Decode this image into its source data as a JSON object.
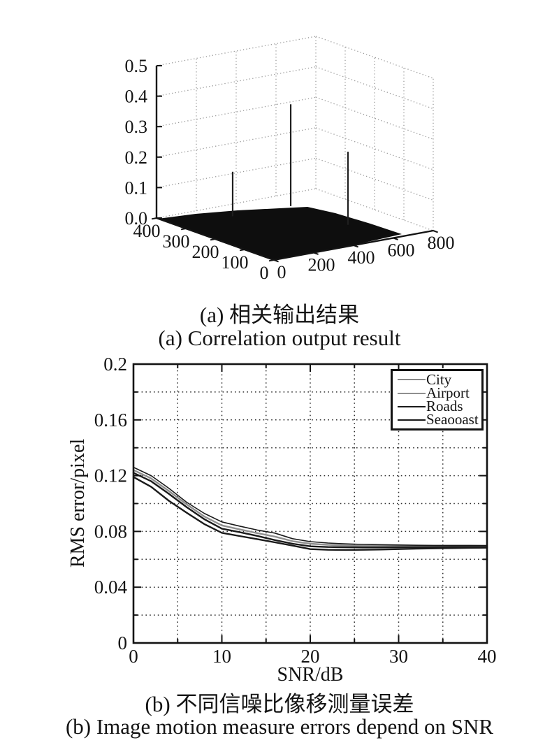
{
  "figure": {
    "background": "#ffffff",
    "ink": "#131313",
    "grid_dot_color_3d": "#9a9a9a",
    "grid_dot_color_2d": "#2e2e2e"
  },
  "chart_data": [
    {
      "type": "3d-stem-surface",
      "description": "Correlation output: flat dark noise floor near z=0 with sharp correlation peaks",
      "title_zh": "(a) 相关输出结果",
      "title_en": "(a) Correlation output result",
      "xlim": [
        0,
        800
      ],
      "ylim": [
        0,
        400
      ],
      "zlim": [
        0,
        0.5
      ],
      "x_ticks": [
        0,
        200,
        400,
        600,
        800
      ],
      "x_tick_labels": [
        "0",
        "200",
        "400",
        "600",
        "800"
      ],
      "y_ticks": [
        0,
        100,
        200,
        300,
        400
      ],
      "y_tick_labels": [
        "0",
        "100",
        "200",
        "300",
        "400"
      ],
      "z_ticks": [
        0.0,
        0.1,
        0.2,
        0.3,
        0.4,
        0.5
      ],
      "z_tick_labels": [
        "0.0",
        "0.1",
        "0.2",
        "0.3",
        "0.4",
        "0.5"
      ],
      "grid": "dotted back walls",
      "surface_color": "#0e0e0e",
      "peaks": [
        {
          "x": 235,
          "y": 300,
          "z": 0.158
        },
        {
          "x": 522,
          "y": 297,
          "z": 0.346
        },
        {
          "x": 537,
          "y": 112,
          "z": 0.252
        }
      ]
    },
    {
      "type": "line",
      "title_zh": "(b) 不同信噪比像移测量误差",
      "title_en": "(b) Image motion measure errors depend on SNR",
      "xlabel": "SNR/dB",
      "ylabel": "RMS error/pixel",
      "xlim": [
        0,
        40
      ],
      "ylim": [
        0,
        0.2
      ],
      "x_major_ticks": [
        0,
        10,
        20,
        30,
        40
      ],
      "x_major_labels": [
        "0",
        "10",
        "20",
        "30",
        "40"
      ],
      "x_minor_ticks": [
        5,
        15,
        25,
        35
      ],
      "x_grid": [
        5,
        10,
        15,
        20,
        25,
        30,
        35
      ],
      "y_major_ticks": [
        0,
        0.04,
        0.08,
        0.12,
        0.16,
        0.2
      ],
      "y_major_labels": [
        "0",
        "0.04",
        "0.08",
        "0.12",
        "0.16",
        "0.2"
      ],
      "y_minor_ticks": [
        0.02,
        0.06,
        0.1,
        0.14,
        0.18
      ],
      "y_grid": [
        0.02,
        0.04,
        0.06,
        0.08,
        0.1,
        0.12,
        0.14,
        0.16,
        0.18
      ],
      "grid": "dotted",
      "legend_position": "top-right inside",
      "x": [
        0,
        2,
        4,
        6,
        8,
        10,
        12,
        14,
        16,
        18,
        20,
        22,
        24,
        26,
        28,
        30,
        32,
        34,
        36,
        38,
        40
      ],
      "series": [
        {
          "name": "City",
          "color": "#1a1a1a",
          "width": 1.6,
          "values": [
            0.126,
            0.12,
            0.111,
            0.101,
            0.093,
            0.0868,
            0.0838,
            0.081,
            0.0788,
            0.0748,
            0.0727,
            0.0717,
            0.0711,
            0.0707,
            0.0705,
            0.0703,
            0.0701,
            0.07,
            0.07,
            0.07,
            0.0699
          ]
        },
        {
          "name": "Airport",
          "color": "#8f8f8f",
          "width": 2.4,
          "values": [
            0.124,
            0.118,
            0.109,
            0.0995,
            0.0908,
            0.0843,
            0.0815,
            0.0788,
            0.0763,
            0.073,
            0.0712,
            0.0704,
            0.0699,
            0.0696,
            0.0695,
            0.0694,
            0.0693,
            0.0693,
            0.0692,
            0.0692,
            0.0692
          ]
        },
        {
          "name": "Roads",
          "color": "#1a1a1a",
          "width": 2.4,
          "values": [
            0.122,
            0.116,
            0.107,
            0.0975,
            0.0888,
            0.082,
            0.0795,
            0.0768,
            0.0738,
            0.0712,
            0.0693,
            0.0688,
            0.0686,
            0.0685,
            0.0685,
            0.0686,
            0.0687,
            0.0687,
            0.0688,
            0.0688,
            0.0688
          ]
        },
        {
          "name": "Seaooast",
          "color": "#1a1a1a",
          "width": 2.4,
          "values": [
            0.119,
            0.112,
            0.102,
            0.0935,
            0.0853,
            0.079,
            0.0767,
            0.0745,
            0.0722,
            0.0698,
            0.0673,
            0.0668,
            0.0667,
            0.0668,
            0.067,
            0.0673,
            0.0676,
            0.0678,
            0.068,
            0.0682,
            0.0683
          ]
        }
      ]
    }
  ]
}
